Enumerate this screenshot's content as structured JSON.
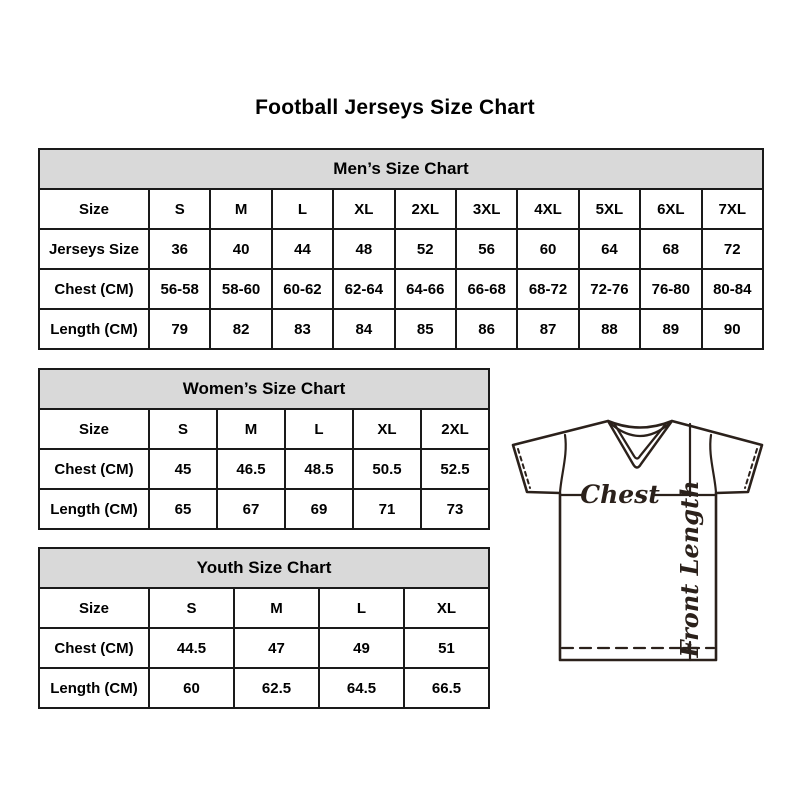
{
  "page": {
    "title": "Football Jerseys Size Chart"
  },
  "colors": {
    "background": "#ffffff",
    "table_border": "#1a1a1a",
    "table_band_bg": "#d9d9d9",
    "text": "#000000",
    "jersey_line": "#2b211b"
  },
  "chart_data": [
    {
      "type": "table",
      "name": "mens",
      "title": "Men’s Size Chart",
      "columns": [
        "Size",
        "S",
        "M",
        "L",
        "XL",
        "2XL",
        "3XL",
        "4XL",
        "5XL",
        "6XL",
        "7XL"
      ],
      "rows": [
        [
          "Jerseys Size",
          "36",
          "40",
          "44",
          "48",
          "52",
          "56",
          "60",
          "64",
          "68",
          "72"
        ],
        [
          "Chest (CM)",
          "56-58",
          "58-60",
          "60-62",
          "62-64",
          "64-66",
          "66-68",
          "68-72",
          "72-76",
          "76-80",
          "80-84"
        ],
        [
          "Length (CM)",
          "79",
          "82",
          "83",
          "84",
          "85",
          "86",
          "87",
          "88",
          "89",
          "90"
        ]
      ]
    },
    {
      "type": "table",
      "name": "womens",
      "title": "Women’s Size Chart",
      "columns": [
        "Size",
        "S",
        "M",
        "L",
        "XL",
        "2XL"
      ],
      "rows": [
        [
          "Chest (CM)",
          "45",
          "46.5",
          "48.5",
          "50.5",
          "52.5"
        ],
        [
          "Length (CM)",
          "65",
          "67",
          "69",
          "71",
          "73"
        ]
      ]
    },
    {
      "type": "table",
      "name": "youth",
      "title": "Youth Size Chart",
      "columns": [
        "Size",
        "S",
        "M",
        "L",
        "XL"
      ],
      "rows": [
        [
          "Chest (CM)",
          "44.5",
          "47",
          "49",
          "51"
        ],
        [
          "Length (CM)",
          "60",
          "62.5",
          "64.5",
          "66.5"
        ]
      ]
    }
  ],
  "diagram": {
    "chest_label": "Chest",
    "front_length_label": "Front Length"
  }
}
